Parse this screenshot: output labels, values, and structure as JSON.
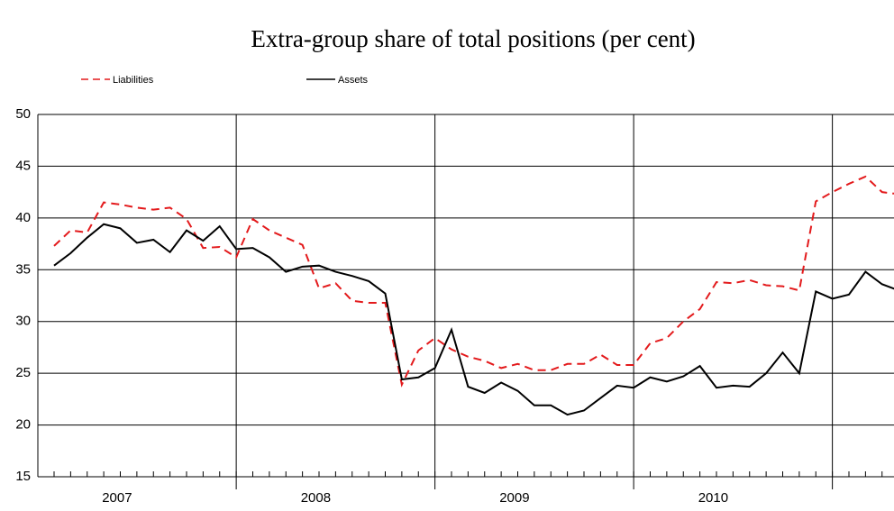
{
  "chart_data": {
    "type": "line",
    "title": "Extra-group share of total positions (per cent)",
    "categories": [
      null,
      null,
      null,
      null,
      null,
      "2007",
      null,
      null,
      null,
      null,
      null,
      null,
      null,
      null,
      null,
      null,
      null,
      "2008",
      null,
      null,
      null,
      null,
      null,
      null,
      null,
      null,
      null,
      null,
      null,
      "2009",
      null,
      null,
      null,
      null,
      null,
      null,
      null,
      null,
      null,
      null,
      null,
      "2010",
      null,
      null,
      null,
      null,
      null,
      null,
      null,
      null,
      null,
      null
    ],
    "series": [
      {
        "name": "Liabilities",
        "color": "#e31a1c",
        "dashed": true,
        "values": [
          37.3,
          38.8,
          38.6,
          41.5,
          41.3,
          41.0,
          40.8,
          41.0,
          39.9,
          37.1,
          37.2,
          36.2,
          39.9,
          38.8,
          38.1,
          37.4,
          33.2,
          33.7,
          32.0,
          31.8,
          31.8,
          23.9,
          27.2,
          28.4,
          27.3,
          26.6,
          26.2,
          25.5,
          25.9,
          25.3,
          25.3,
          25.9,
          25.9,
          26.8,
          25.8,
          25.8,
          27.9,
          28.4,
          30.0,
          31.2,
          33.8,
          33.7,
          34.0,
          33.5,
          33.4,
          33.0,
          41.6,
          42.5,
          43.3,
          44.0,
          42.5,
          42.3
        ]
      },
      {
        "name": "Assets",
        "color": "#000000",
        "dashed": false,
        "values": [
          35.4,
          36.6,
          38.1,
          39.4,
          39.0,
          37.6,
          37.9,
          36.7,
          38.8,
          37.8,
          39.2,
          37.0,
          37.1,
          36.2,
          34.8,
          35.3,
          35.4,
          34.8,
          34.4,
          33.9,
          32.7,
          24.4,
          24.6,
          25.5,
          29.2,
          23.7,
          23.1,
          24.1,
          23.3,
          21.9,
          21.9,
          21.0,
          21.4,
          22.6,
          23.8,
          23.6,
          24.6,
          24.2,
          24.7,
          25.7,
          23.6,
          23.8,
          23.7,
          25.0,
          27.0,
          25.0,
          32.9,
          32.2,
          32.6,
          34.8,
          33.6,
          33.0
        ]
      }
    ],
    "ylim": [
      15,
      50
    ],
    "yticks": [
      15,
      20,
      25,
      30,
      35,
      40,
      45,
      50
    ],
    "grid": true
  }
}
